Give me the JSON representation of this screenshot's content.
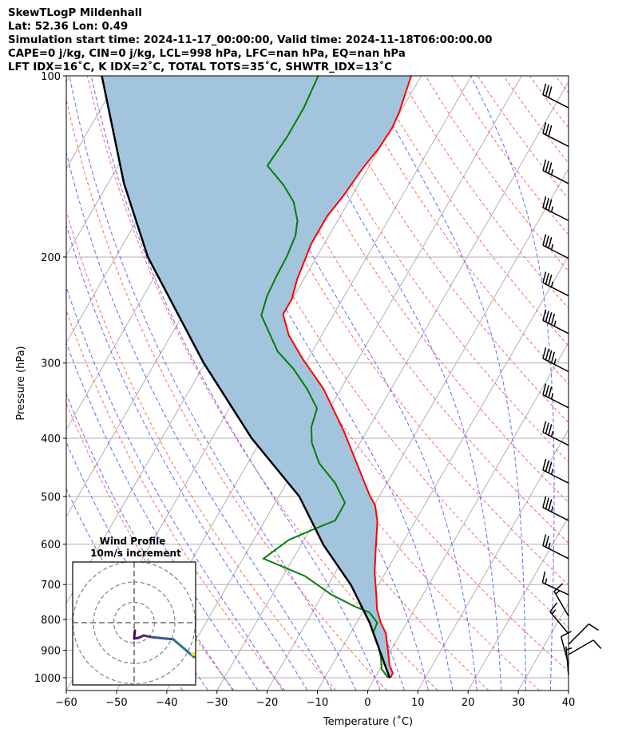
{
  "chart_data": {
    "type": "line",
    "title_lines": [
      "SkewTLogP Mildenhall",
      "Lat: 52.36   Lon: 0.49",
      "Simulation start time: 2024-11-17_00:00:00, Valid time: 2024-11-18T06:00:00.00",
      "CAPE=0 j/kg, CIN=0 j/kg, LCL=998 hPa, LFC=nan hPa, EQ=nan hPa",
      "LFT IDX=16˚C, K IDX=2˚C, TOTAL TOTS=35˚C, SHWTR_IDX=13˚C"
    ],
    "xlabel": "Temperature (˚C)",
    "ylabel": "Pressure (hPa)",
    "xlim": [
      -60,
      40
    ],
    "ylim": [
      1050,
      100
    ],
    "xticks": [
      -60,
      -50,
      -40,
      -30,
      -20,
      -10,
      0,
      10,
      20,
      30,
      40
    ],
    "yticks": [
      100,
      200,
      300,
      400,
      500,
      600,
      700,
      800,
      900,
      1000
    ],
    "skew_deg": 30,
    "colors": {
      "temperature": "#ff0000",
      "dewpoint": "#008000",
      "parcel": "#000000",
      "cape_fill": "#a2c4dd",
      "isotherm": "#b0b0b0",
      "dry_adiabat": "#ff6666",
      "moist_adiabat": "#6666ff"
    },
    "series": [
      {
        "name": "Temperature",
        "points": [
          [
            1000,
            3.1
          ],
          [
            982,
            3.0
          ],
          [
            952,
            1.4
          ],
          [
            907,
            -0.3
          ],
          [
            843,
            -3.0
          ],
          [
            810,
            -5.2
          ],
          [
            769,
            -7.5
          ],
          [
            732,
            -9.1
          ],
          [
            668,
            -12.2
          ],
          [
            610,
            -14.7
          ],
          [
            550,
            -17.5
          ],
          [
            517,
            -19.8
          ],
          [
            497,
            -22.1
          ],
          [
            389,
            -34.6
          ],
          [
            331,
            -43.5
          ],
          [
            296,
            -50.9
          ],
          [
            270,
            -56.5
          ],
          [
            249,
            -60.1
          ],
          [
            235,
            -60.1
          ],
          [
            218,
            -61.3
          ],
          [
            190,
            -62.6
          ],
          [
            171,
            -62.6
          ],
          [
            158,
            -61.7
          ],
          [
            142,
            -61.0
          ],
          [
            132,
            -60.1
          ],
          [
            122,
            -59.8
          ],
          [
            115,
            -60.2
          ],
          [
            100,
            -62.0
          ]
        ]
      },
      {
        "name": "Dewpoint",
        "points": [
          [
            1000,
            3.0
          ],
          [
            997,
            2.4
          ],
          [
            967,
            0.3
          ],
          [
            924,
            -1.2
          ],
          [
            880,
            -3.3
          ],
          [
            843,
            -5.5
          ],
          [
            810,
            -5.9
          ],
          [
            779,
            -8.6
          ],
          [
            762,
            -12.1
          ],
          [
            728,
            -18.2
          ],
          [
            678,
            -25.6
          ],
          [
            634,
            -35.9
          ],
          [
            590,
            -33.0
          ],
          [
            565,
            -29.0
          ],
          [
            548,
            -26.0
          ],
          [
            512,
            -26.1
          ],
          [
            475,
            -30.3
          ],
          [
            440,
            -35.8
          ],
          [
            407,
            -39.6
          ],
          [
            383,
            -41.5
          ],
          [
            357,
            -42.5
          ],
          [
            332,
            -46.6
          ],
          [
            307,
            -51.7
          ],
          [
            287,
            -56.9
          ],
          [
            250,
            -64.3
          ],
          [
            232,
            -65.4
          ],
          [
            214,
            -65.8
          ],
          [
            199,
            -66.0
          ],
          [
            184,
            -66.7
          ],
          [
            174,
            -68.0
          ],
          [
            162,
            -70.9
          ],
          [
            152,
            -74.8
          ],
          [
            141,
            -80.3
          ],
          [
            126,
            -79.7
          ],
          [
            113,
            -79.7
          ],
          [
            100,
            -80.5
          ]
        ]
      },
      {
        "name": "Parcel",
        "points": [
          [
            1000,
            2.9
          ],
          [
            810,
            -7.4
          ],
          [
            702,
            -15.4
          ],
          [
            602,
            -25.5
          ],
          [
            500,
            -35.9
          ],
          [
            400,
            -52.1
          ],
          [
            300,
            -70.3
          ],
          [
            200,
            -93.6
          ],
          [
            151,
            -106.8
          ],
          [
            100,
            -123.6
          ]
        ]
      }
    ],
    "wind_barbs_kt": [
      {
        "p": 113,
        "dir": 297,
        "spd": 30
      },
      {
        "p": 131,
        "dir": 297,
        "spd": 30
      },
      {
        "p": 151,
        "dir": 297,
        "spd": 35
      },
      {
        "p": 174,
        "dir": 297,
        "spd": 35
      },
      {
        "p": 201,
        "dir": 297,
        "spd": 35
      },
      {
        "p": 232,
        "dir": 297,
        "spd": 35
      },
      {
        "p": 268,
        "dir": 297,
        "spd": 45
      },
      {
        "p": 310,
        "dir": 297,
        "spd": 45
      },
      {
        "p": 356,
        "dir": 297,
        "spd": 35
      },
      {
        "p": 411,
        "dir": 297,
        "spd": 35
      },
      {
        "p": 475,
        "dir": 297,
        "spd": 35
      },
      {
        "p": 548,
        "dir": 297,
        "spd": 35
      },
      {
        "p": 634,
        "dir": 297,
        "spd": 25
      },
      {
        "p": 728,
        "dir": 295,
        "spd": 15
      },
      {
        "p": 790,
        "dir": 330,
        "spd": 15
      },
      {
        "p": 845,
        "dir": 320,
        "spd": 15
      },
      {
        "p": 880,
        "dir": 45,
        "spd": 10
      },
      {
        "p": 915,
        "dir": 60,
        "spd": 10
      },
      {
        "p": 950,
        "dir": 345,
        "spd": 10
      },
      {
        "p": 990,
        "dir": 355,
        "spd": 5
      }
    ],
    "hodograph": {
      "title": "Wind Profile",
      "subtitle": "10m/s increment",
      "rings_ms": [
        10,
        20,
        30
      ],
      "uv_ms": [
        [
          0.4,
          -3.9
        ],
        [
          0.2,
          -5.5
        ],
        [
          0,
          -7.8
        ],
        [
          2,
          -7.5
        ],
        [
          4.7,
          -6.3
        ],
        [
          8.6,
          -7.1
        ],
        [
          19.2,
          -8.2
        ],
        [
          29.4,
          -16.9
        ]
      ]
    }
  }
}
